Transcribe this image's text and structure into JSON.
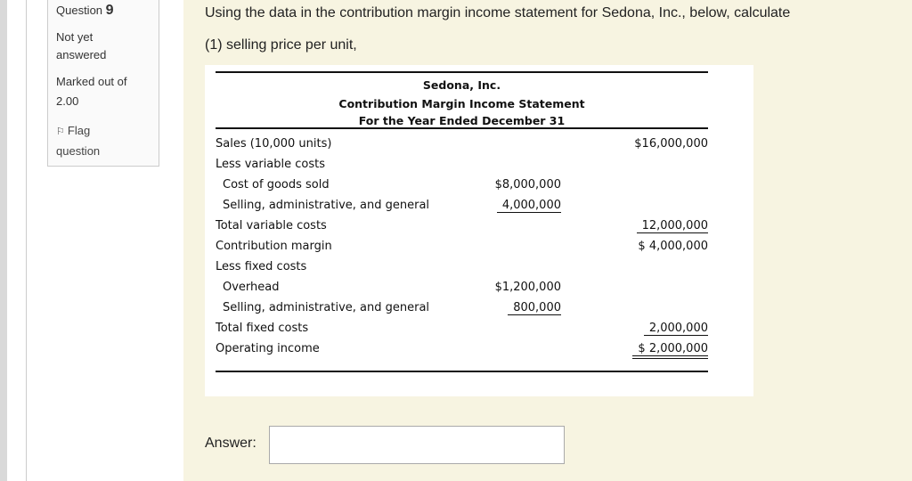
{
  "sidebar": {
    "question_label": "Question",
    "question_number": "9",
    "status": "Not yet answered",
    "marks_label": "Marked out of",
    "marks_value": "2.00",
    "flag": "Flag question"
  },
  "prompt": {
    "text": "Using the data in the contribution margin income statement for Sedona, Inc., below, calculate",
    "task": "(1) selling price per unit,"
  },
  "statement": {
    "company": "Sedona, Inc.",
    "title": "Contribution Margin Income Statement",
    "period": "For the Year Ended December 31",
    "rows": [
      {
        "label": "Sales (10,000 units)",
        "col2": "$16,000,000"
      },
      {
        "label": "Less variable costs"
      },
      {
        "label": "Cost of goods sold",
        "col1": "$8,000,000"
      },
      {
        "label": "Selling, administrative, and general",
        "col1": "4,000,000"
      },
      {
        "label": "Total variable costs",
        "col2": "12,000,000"
      },
      {
        "label": "Contribution margin",
        "col2": "$ 4,000,000"
      },
      {
        "label": "Less fixed costs"
      },
      {
        "label": "Overhead",
        "col1": "$1,200,000"
      },
      {
        "label": "Selling, administrative, and general",
        "col1": "800,000"
      },
      {
        "label": "Total fixed costs",
        "col2": "2,000,000"
      },
      {
        "label": "Operating income",
        "col2": "$ 2,000,000"
      }
    ]
  },
  "answer": {
    "label": "Answer:"
  }
}
